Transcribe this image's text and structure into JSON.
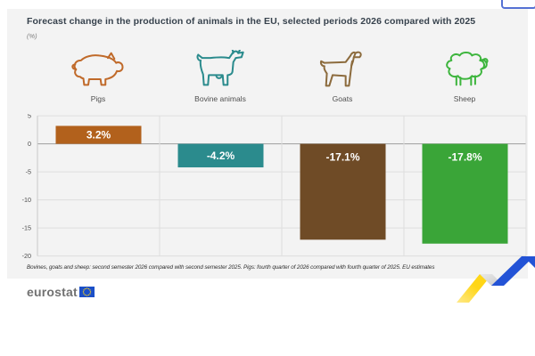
{
  "header": {
    "title": "Forecast change in the production of animals in the EU, selected periods 2026 compared with 2025",
    "subtitle": "(%)"
  },
  "categories": [
    {
      "label": "Pigs",
      "icon": "pig-icon",
      "icon_color": "#c06a2a"
    },
    {
      "label": "Bovine animals",
      "icon": "cow-icon",
      "icon_color": "#2b8b8d"
    },
    {
      "label": "Goats",
      "icon": "goat-icon",
      "icon_color": "#8c6b3d"
    },
    {
      "label": "Sheep",
      "icon": "sheep-icon",
      "icon_color": "#3db53d"
    }
  ],
  "chart_data": {
    "type": "bar",
    "title": "Forecast change in the production of animals in the EU, selected periods 2026 compared with 2025",
    "unit": "%",
    "categories": [
      "Pigs",
      "Bovine animals",
      "Goats",
      "Sheep"
    ],
    "values": [
      3.2,
      -4.2,
      -17.1,
      -17.8
    ],
    "data_labels": [
      "3.2%",
      "-4.2%",
      "-17.1%",
      "-17.8%"
    ],
    "bar_colors": [
      "#b2611c",
      "#2b8b8d",
      "#6f4b26",
      "#3aa538"
    ],
    "ylim": [
      -20,
      5
    ],
    "yticks": [
      5,
      0,
      -5,
      -10,
      -15,
      -20
    ],
    "grid": true,
    "legend": "none"
  },
  "footnote": "Bovines, goats and sheep: second semester 2026 compared with second semester 2025. Pigs: fourth quarter of 2026 compared with fourth quarter of 2025. EU estimates",
  "footer": {
    "logo_text": "eurostat"
  },
  "brand_colors": {
    "card_background": "#f3f3f3",
    "eu_flag_blue": "#1b4fc8",
    "eu_star_yellow": "#ffd617",
    "ribbon_yellow": "#ffd617",
    "ribbon_blue": "#2353d6",
    "ribbon_gray": "#d9d9d9"
  }
}
